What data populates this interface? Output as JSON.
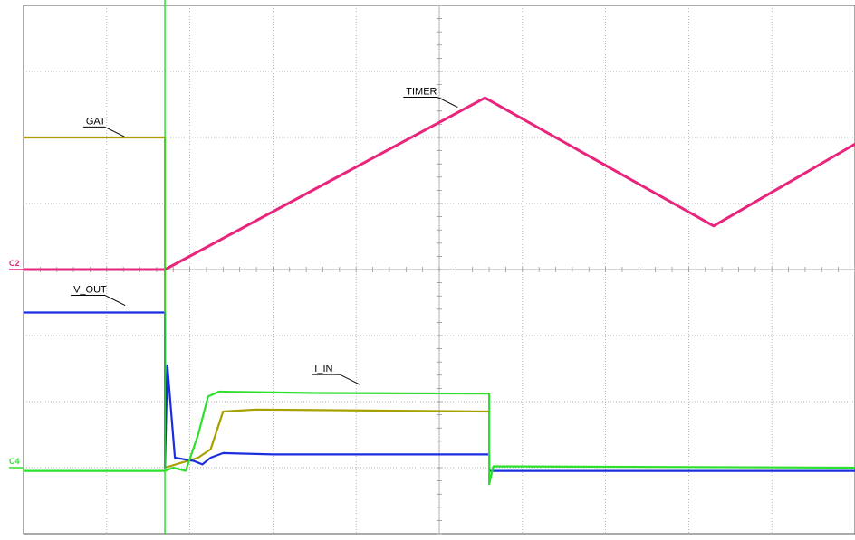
{
  "chart_data": {
    "type": "line",
    "title": "",
    "xlabel": "",
    "ylabel": "",
    "grid": true,
    "xlim": [
      0,
      10
    ],
    "ylim": [
      -4,
      4
    ],
    "series": [
      {
        "name": "GAT",
        "color": "#a8a000",
        "points": [
          [
            0,
            2.0
          ],
          [
            1.7,
            2.0
          ],
          [
            1.7,
            -3.0
          ],
          [
            2.1,
            -2.85
          ],
          [
            2.25,
            -2.72
          ],
          [
            2.4,
            -2.15
          ],
          [
            2.8,
            -2.12
          ],
          [
            5.6,
            -2.15
          ]
        ]
      },
      {
        "name": "TIMER",
        "color": "#e8247c",
        "points": [
          [
            0,
            0
          ],
          [
            1.7,
            0
          ],
          [
            5.55,
            2.6
          ],
          [
            8.3,
            0.66
          ],
          [
            10,
            1.9
          ]
        ]
      },
      {
        "name": "V_OUT",
        "color": "#1a2ee0",
        "points": [
          [
            0,
            -0.65
          ],
          [
            1.7,
            -0.65
          ],
          [
            1.7,
            -3.0
          ],
          [
            1.73,
            -1.45
          ],
          [
            1.82,
            -2.85
          ],
          [
            2.05,
            -2.9
          ],
          [
            2.15,
            -2.95
          ],
          [
            2.25,
            -2.85
          ],
          [
            2.4,
            -2.78
          ],
          [
            3.0,
            -2.8
          ],
          [
            5.6,
            -2.8
          ],
          [
            5.6,
            -3.05
          ],
          [
            10,
            -3.05
          ]
        ]
      },
      {
        "name": "I_IN",
        "color": "#2ce02c",
        "points": [
          [
            0,
            -3.05
          ],
          [
            1.7,
            -3.05
          ],
          [
            1.8,
            -3.0
          ],
          [
            1.95,
            -3.05
          ],
          [
            2.1,
            -2.5
          ],
          [
            2.22,
            -1.92
          ],
          [
            2.35,
            -1.85
          ],
          [
            3.5,
            -1.87
          ],
          [
            5.6,
            -1.88
          ],
          [
            5.6,
            -3.25
          ],
          [
            5.65,
            -2.98
          ],
          [
            10,
            -3.0
          ]
        ]
      }
    ],
    "labels": [
      {
        "series": "GAT",
        "text": "GAT",
        "x": 0.75,
        "y": 2.2
      },
      {
        "series": "TIMER",
        "text": "TIMER",
        "x": 4.6,
        "y": 2.65
      },
      {
        "series": "V_OUT",
        "text": "V_OUT",
        "x": 0.6,
        "y": -0.35
      },
      {
        "series": "I_IN",
        "text": "I_IN",
        "x": 3.5,
        "y": -1.55
      }
    ],
    "trigger_x": 1.7,
    "channel_markers": [
      {
        "text": "C2",
        "y": 0,
        "color": "#e8247c"
      },
      {
        "text": "C4",
        "y": -3.0,
        "color": "#2ce02c"
      }
    ]
  }
}
